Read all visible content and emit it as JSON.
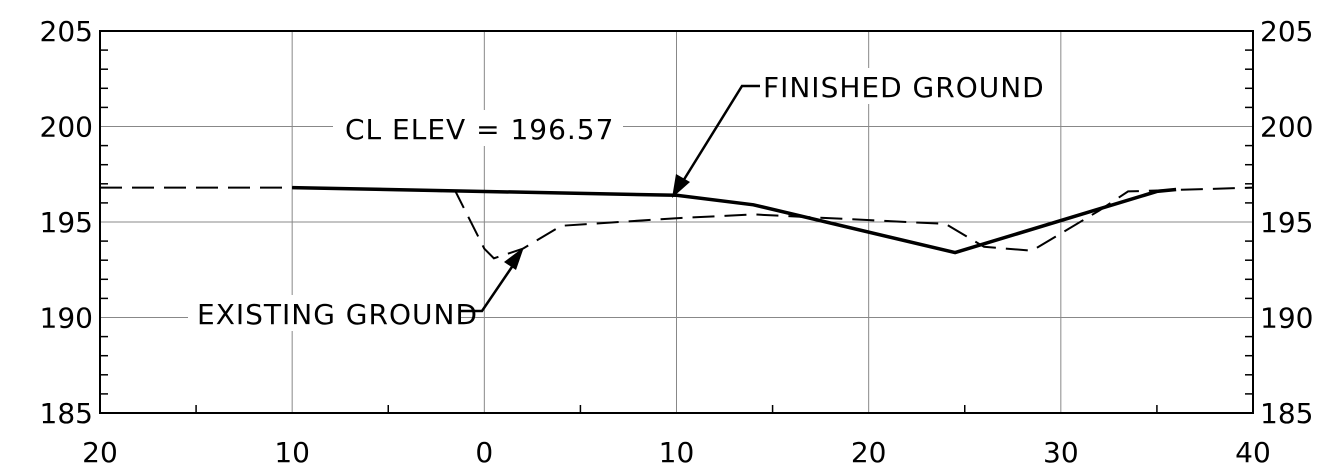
{
  "chart_data": {
    "type": "line",
    "title": "",
    "xlabel": "",
    "ylabel": "",
    "xlim": [
      -20,
      40
    ],
    "ylim": [
      185,
      205
    ],
    "x_tick_values": [
      -20,
      -10,
      0,
      10,
      20,
      30,
      40
    ],
    "x_tick_labels": [
      "20",
      "10",
      "0",
      "10",
      "20",
      "30",
      "40"
    ],
    "y_ticks": [
      185,
      190,
      195,
      200,
      205
    ],
    "grid": true,
    "series": [
      {
        "name": "EXISTING GROUND",
        "style": "dashed",
        "x": [
          -20,
          -10,
          -1.5,
          0,
          0.5,
          2,
          4,
          10,
          14,
          24,
          26,
          28.5,
          32,
          33.5,
          40
        ],
        "y": [
          196.8,
          196.8,
          196.6,
          193.6,
          193.1,
          193.6,
          194.8,
          195.2,
          195.4,
          194.9,
          193.7,
          193.5,
          195.6,
          196.6,
          196.8
        ]
      },
      {
        "name": "FINISHED GROUND",
        "style": "solid",
        "x": [
          -10,
          10,
          14,
          24.5,
          35,
          36
        ],
        "y": [
          196.8,
          196.4,
          195.9,
          193.4,
          196.6,
          196.7
        ]
      }
    ],
    "annotations": {
      "cl_elev": "CL ELEV = 196.57",
      "finished_ground": "FINISHED GROUND",
      "existing_ground": "EXISTING GROUND"
    }
  }
}
